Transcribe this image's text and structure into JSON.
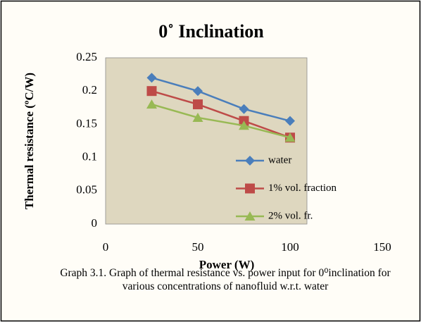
{
  "chart_data": {
    "type": "line",
    "title": "0˚ Inclination",
    "x_label": "Power (W)",
    "y_label": "Thermal resistance (ºC/W)",
    "caption": "Graph 3.1. Graph of thermal resistance vs. power input for 0⁰inclination for various concentrations of nanofluid w.r.t. water",
    "x": [
      25,
      50,
      75,
      100
    ],
    "series": [
      {
        "name": "water",
        "color": "#4a7ebb",
        "marker": "diamond",
        "values": [
          0.22,
          0.2,
          0.173,
          0.155
        ]
      },
      {
        "name": "1% vol. fraction",
        "color": "#be4b48",
        "marker": "square",
        "values": [
          0.2,
          0.18,
          0.155,
          0.13
        ]
      },
      {
        "name": "2% vol. fr.",
        "color": "#98b954",
        "marker": "triangle",
        "values": [
          0.18,
          0.16,
          0.148,
          0.13
        ]
      }
    ],
    "xlim": [
      0,
      150
    ],
    "xticks": [
      0,
      50,
      100,
      150
    ],
    "ylim": [
      0,
      0.25
    ],
    "yticks": [
      0,
      0.05,
      0.1,
      0.15,
      0.2,
      0.25
    ],
    "grid": false,
    "legend_position": "lower right"
  }
}
